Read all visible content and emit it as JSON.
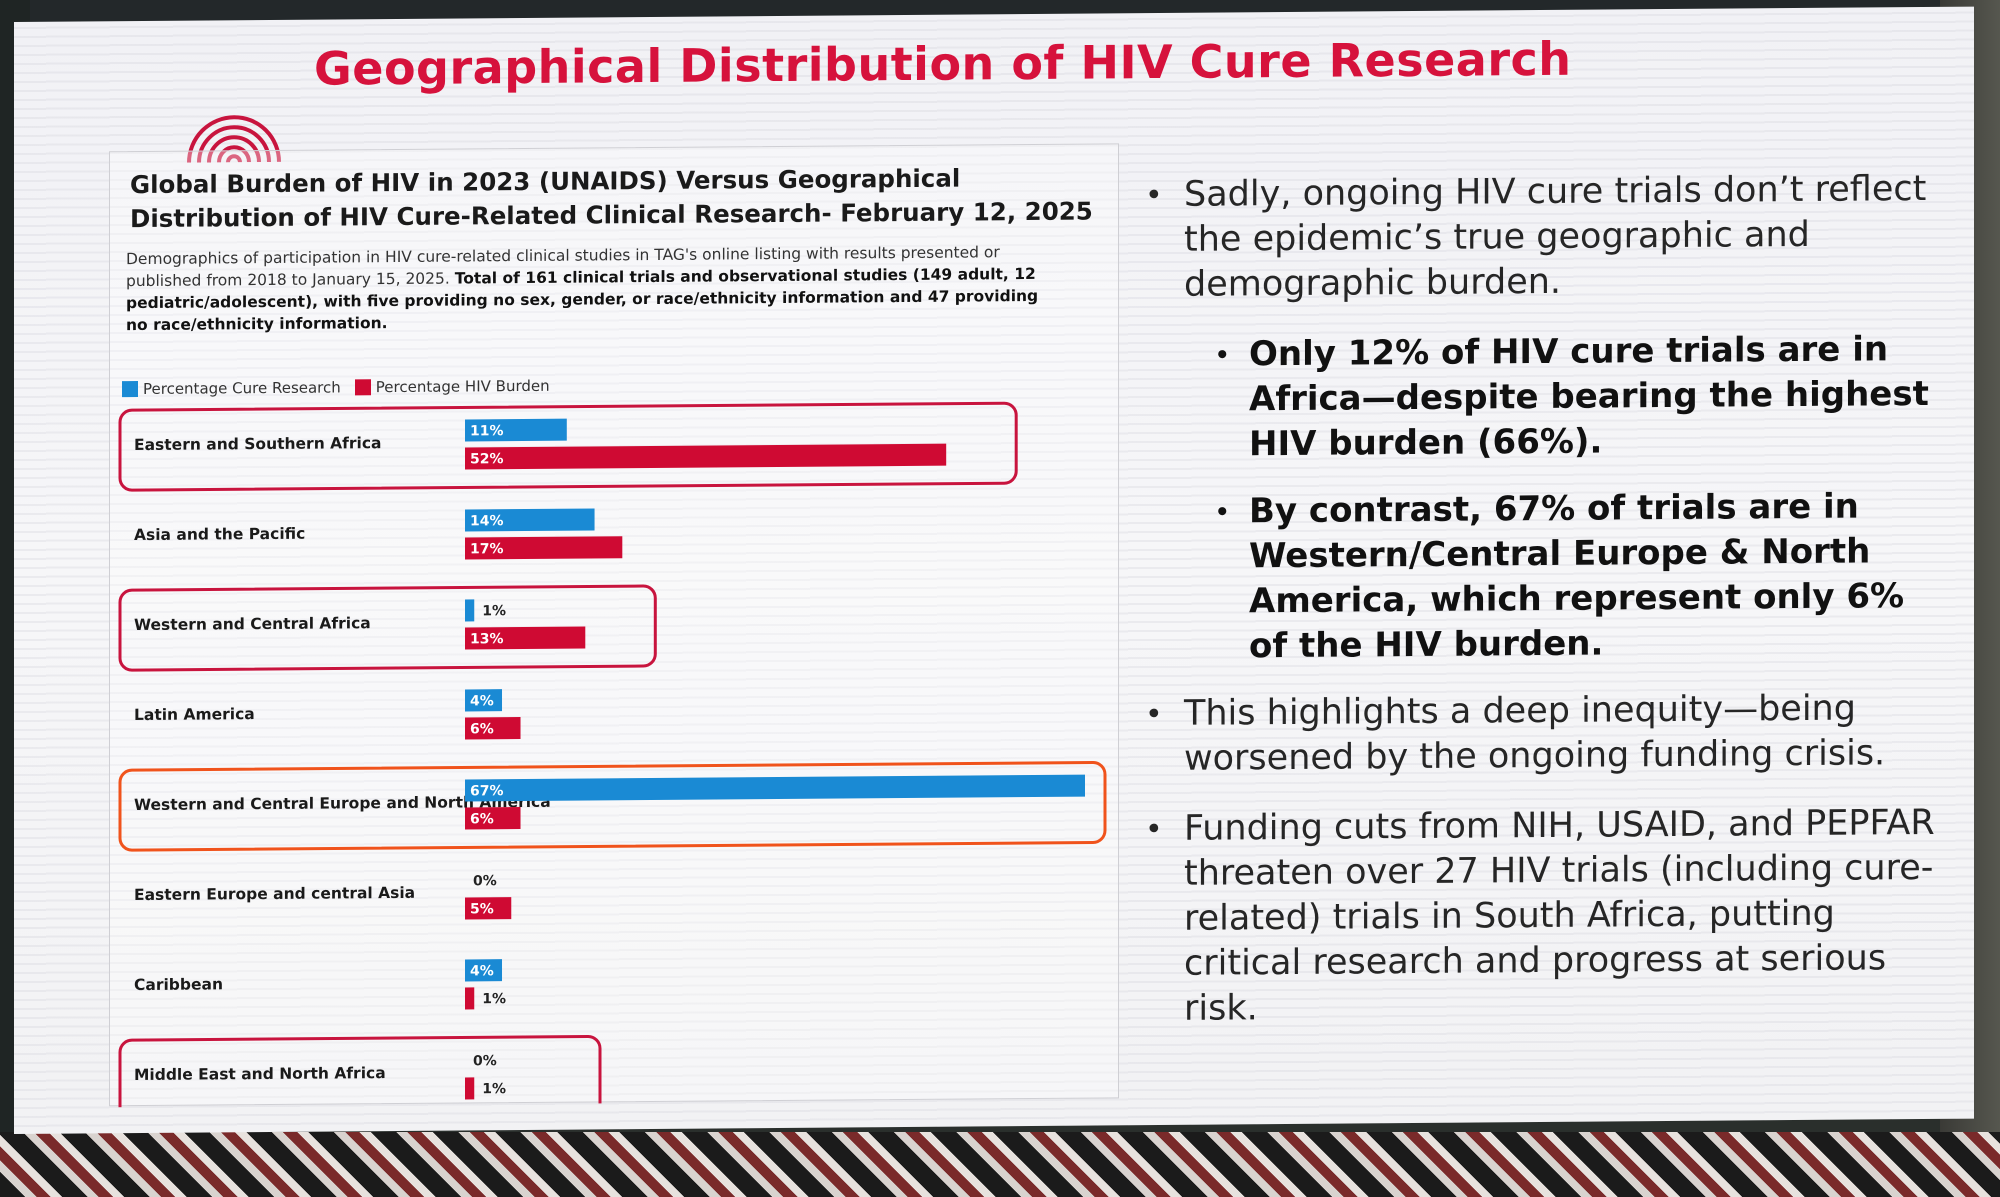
{
  "slide": {
    "title": "Geographical Distribution of HIV Cure Research"
  },
  "chart_data": {
    "type": "bar",
    "orientation": "horizontal",
    "title": "Global Burden of HIV in 2023 (UNAIDS) Versus Geographical Distribution of HIV Cure-Related Clinical Research- February 12, 2025",
    "subtitle_plain": "Demographics of participation in HIV cure-related clinical studies in TAG's online listing with results presented or published from 2018 to January 15, 2025.",
    "subtitle_bold": "Total of 161 clinical trials and observational studies (149 adult, 12 pediatric/adolescent), with five providing no sex, gender, or race/ethnicity information and 47 providing no race/ethnicity information.",
    "legend_position": "top-left",
    "categories": [
      "Eastern and Southern Africa",
      "Asia and the Pacific",
      "Western and Central Africa",
      "Latin America",
      "Western and Central Europe and North America",
      "Eastern Europe and central Asia",
      "Caribbean",
      "Middle East and North Africa"
    ],
    "series": [
      {
        "name": "Percentage Cure Research",
        "color": "#1a8ad4",
        "values": [
          11,
          14,
          1,
          4,
          67,
          0,
          4,
          0
        ],
        "labels": [
          "11%",
          "14%",
          "1%",
          "4%",
          "67%",
          "0%",
          "4%",
          "0%"
        ]
      },
      {
        "name": "Percentage HIV Burden",
        "color": "#cf0a33",
        "values": [
          52,
          17,
          13,
          6,
          6,
          5,
          1,
          1
        ],
        "labels": [
          "52%",
          "17%",
          "13%",
          "6%",
          "6%",
          "5%",
          "1%",
          "1%"
        ]
      }
    ],
    "highlighted": [
      {
        "category": "Eastern and Southern Africa",
        "color": "#c8143e"
      },
      {
        "category": "Western and Central Africa",
        "color": "#c8143e"
      },
      {
        "category": "Western and Central Europe and North America",
        "color": "#f0531c"
      },
      {
        "category": "Middle East and North Africa",
        "color": "#c8143e"
      }
    ],
    "xlim": [
      0,
      67
    ]
  },
  "bullets": {
    "b1": "Sadly, ongoing HIV cure trials don’t reflect the epidemic’s true geographic and demographic burden.",
    "s1": "Only 12% of HIV cure trials are in Africa—despite bearing the highest HIV burden (66%).",
    "s2": "By contrast, 67% of trials are in Western/Central Europe & North America, which represent only 6% of the HIV burden.",
    "b2": "This highlights a deep inequity—being worsened by the ongoing funding crisis.",
    "b3": "Funding cuts from NIH, USAID, and PEPFAR threaten over 27 HIV trials (including cure-related) trials in South Africa, putting critical research and progress at serious risk."
  }
}
